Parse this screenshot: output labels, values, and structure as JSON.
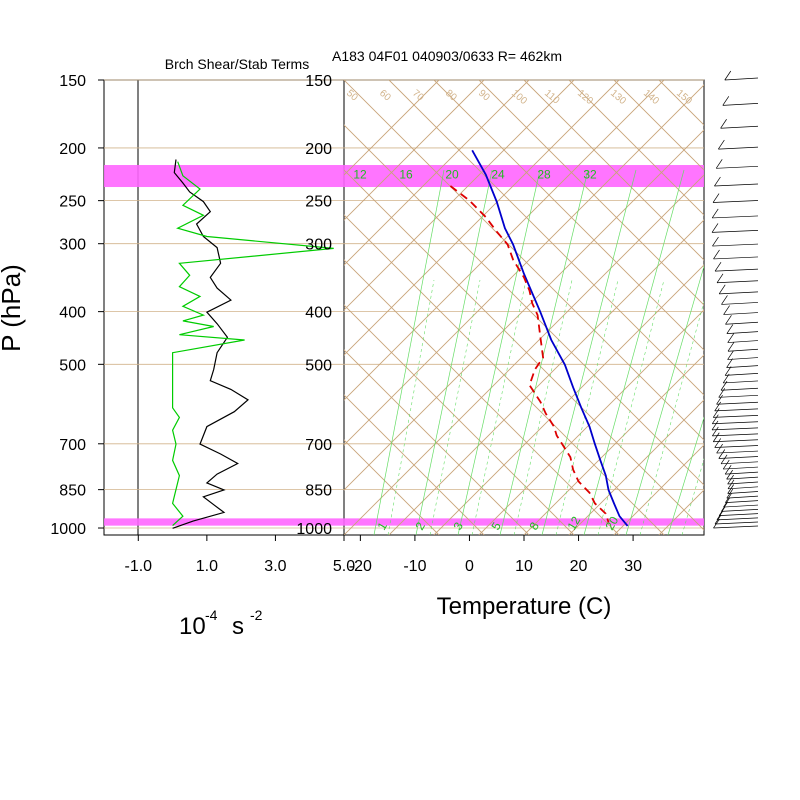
{
  "chart_data": [
    {
      "type": "line",
      "title": "Brch Shear/Stab Terms",
      "ylabel": "P (hPa)",
      "xlabel": "10",
      "xlabel_exp": "-4",
      "xlabel_unit": "s",
      "xlabel_unit_exp": "-2",
      "x_ticks": [
        "-1.0",
        "1.0",
        "3.0",
        "5.0"
      ],
      "xlim": [
        -2,
        5
      ],
      "y_ticks": [
        "150",
        "200",
        "250",
        "300",
        "400",
        "500",
        "700",
        "850",
        "1000"
      ],
      "highlight_bands_hpa": [
        [
          215,
          236
        ],
        [
          960,
          990
        ]
      ],
      "series": [
        {
          "color": "#000000",
          "points": [
            [
              0.1,
              210
            ],
            [
              0.05,
              222
            ],
            [
              0.3,
              232
            ],
            [
              0.5,
              241
            ],
            [
              0.9,
              251
            ],
            [
              1.1,
              262
            ],
            [
              0.7,
              276
            ],
            [
              0.9,
              291
            ],
            [
              1.3,
              305
            ],
            [
              1.4,
              326
            ],
            [
              1.1,
              346
            ],
            [
              1.3,
              362
            ],
            [
              1.7,
              381
            ],
            [
              1.0,
              401
            ],
            [
              1.3,
              421
            ],
            [
              1.6,
              446
            ],
            [
              1.3,
              476
            ],
            [
              1.2,
              511
            ],
            [
              1.1,
              536
            ],
            [
              1.7,
              556
            ],
            [
              2.2,
              581
            ],
            [
              1.8,
              611
            ],
            [
              1.0,
              651
            ],
            [
              0.8,
              701
            ],
            [
              1.4,
              731
            ],
            [
              1.9,
              761
            ],
            [
              1.3,
              796
            ],
            [
              1.0,
              826
            ],
            [
              1.5,
              851
            ],
            [
              0.9,
              876
            ],
            [
              1.2,
              906
            ],
            [
              1.5,
              936
            ],
            [
              0.6,
              971
            ],
            [
              0.0,
              1001
            ]
          ]
        },
        {
          "color": "#00cc00",
          "points": [
            [
              0.15,
              212
            ],
            [
              0.3,
              225
            ],
            [
              0.8,
              238
            ],
            [
              0.3,
              255
            ],
            [
              0.9,
              266
            ],
            [
              0.15,
              281
            ],
            [
              1.0,
              291
            ],
            [
              4.7,
              306
            ],
            [
              0.2,
              326
            ],
            [
              0.5,
              343
            ],
            [
              0.2,
              360
            ],
            [
              0.8,
              375
            ],
            [
              0.3,
              391
            ],
            [
              0.9,
              406
            ],
            [
              0.3,
              416
            ],
            [
              1.2,
              426
            ],
            [
              0.2,
              441
            ],
            [
              2.1,
              451
            ],
            [
              0.0,
              476
            ],
            [
              0.0,
              601
            ],
            [
              0.2,
              626
            ],
            [
              0.0,
              661
            ],
            [
              0.1,
              701
            ],
            [
              0.0,
              751
            ],
            [
              0.2,
              801
            ],
            [
              0.0,
              901
            ],
            [
              0.3,
              951
            ],
            [
              0.0,
              990
            ]
          ]
        }
      ]
    },
    {
      "type": "line",
      "title": "A183 04F01 040903/0633 R= 462km",
      "xlabel": "Temperature (C)",
      "x_ticks": [
        "-20",
        "-10",
        "0",
        "10",
        "20",
        "30"
      ],
      "xlim": [
        -23,
        43
      ],
      "y_ticks": [
        "150",
        "200",
        "250",
        "300",
        "400",
        "500",
        "700",
        "850",
        "1000"
      ],
      "adiabat_labels": [
        "50",
        "60",
        "70",
        "80",
        "90",
        "100",
        "110",
        "120",
        "130",
        "140",
        "150"
      ],
      "moisture_labels": [
        "12",
        "16",
        "20",
        "24",
        "28",
        "32"
      ],
      "mixing_ratio_labels": [
        "1",
        "2",
        "3",
        "5",
        "8",
        "12",
        "20"
      ],
      "highlight_bands_hpa": [
        [
          215,
          236
        ],
        [
          960,
          990
        ]
      ],
      "series": [
        {
          "color": "#0000cc",
          "style": "solid",
          "points": [
            [
              0.5,
              202
            ],
            [
              3,
              224
            ],
            [
              5,
              251
            ],
            [
              6.5,
              281
            ],
            [
              8,
              301
            ],
            [
              10,
              341
            ],
            [
              13,
              401
            ],
            [
              15,
              451
            ],
            [
              17.5,
              501
            ],
            [
              19,
              551
            ],
            [
              20.5,
              601
            ],
            [
              22,
              651
            ],
            [
              23,
              701
            ],
            [
              24,
              751
            ],
            [
              25,
              801
            ],
            [
              25.5,
              851
            ],
            [
              26.5,
              901
            ],
            [
              27.5,
              951
            ],
            [
              29,
              991
            ]
          ]
        },
        {
          "color": "#dd0000",
          "style": "dashed",
          "points": [
            [
              -3.5,
              235
            ],
            [
              0,
              250
            ],
            [
              3,
              268
            ],
            [
              5,
              285
            ],
            [
              7,
              301
            ],
            [
              8,
              321
            ],
            [
              10,
              346
            ],
            [
              11,
              366
            ],
            [
              11.5,
              386
            ],
            [
              12.5,
              406
            ],
            [
              13,
              446
            ],
            [
              13.5,
              486
            ],
            [
              12,
              511
            ],
            [
              11,
              546
            ],
            [
              13,
              586
            ],
            [
              14,
              616
            ],
            [
              15.5,
              651
            ],
            [
              16,
              676
            ],
            [
              17,
              701
            ],
            [
              18.5,
              741
            ],
            [
              19,
              781
            ],
            [
              20,
              821
            ],
            [
              22,
              861
            ],
            [
              23,
              901
            ],
            [
              25,
              941
            ],
            [
              25.5,
              976
            ]
          ]
        }
      ]
    }
  ]
}
